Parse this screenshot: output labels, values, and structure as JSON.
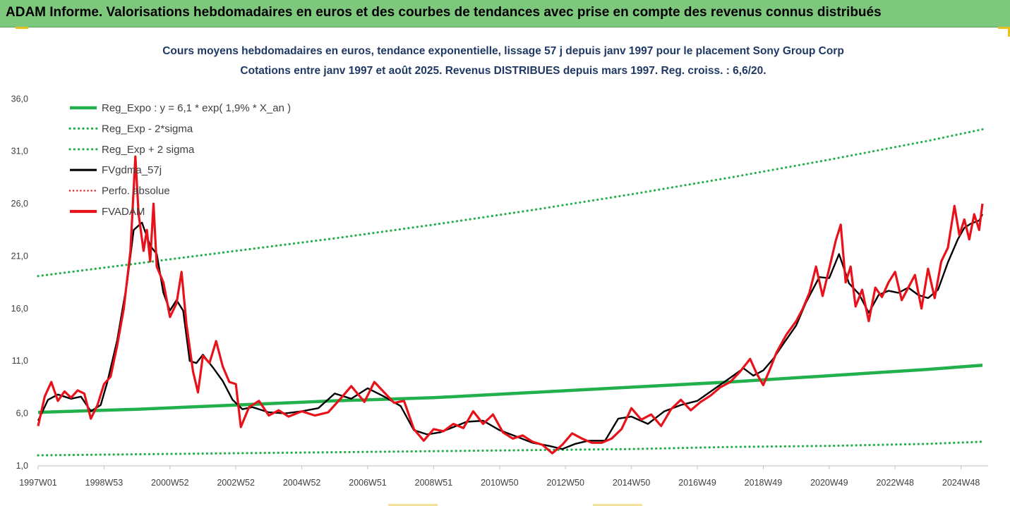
{
  "header": {
    "title": "ADAM Informe. Valorisations hebdomadaires en euros et des courbes de tendances avec prise en compte des revenus connus distribués"
  },
  "colors": {
    "banner": "#7ec87e",
    "trend": "#21b04b",
    "smooth": "#000000",
    "price": "#e8121b",
    "title": "#1f3864"
  },
  "chart_data": {
    "type": "line",
    "title": "Cours moyens hebdomadaires en euros, tendance exponentielle, lissage 57 j depuis janv 1997 pour le placement Sony Group Corp",
    "subtitle": "Cotations entre janv 1997 et août 2025. Revenus DISTRIBUES depuis mars 1997. Reg. croiss. : 6,6/20.",
    "xlabel": "",
    "ylabel": "",
    "ylim": [
      1.0,
      37.5
    ],
    "xlim": [
      1997.0,
      2025.65
    ],
    "y_ticks": [
      "1,0",
      "6,0",
      "11,0",
      "16,0",
      "21,0",
      "26,0",
      "31,0",
      "36,0"
    ],
    "y_tick_values": [
      1,
      6,
      11,
      16,
      21,
      26,
      31,
      36
    ],
    "x_ticks": [
      "1997W01",
      "1998W53",
      "2000W52",
      "2002W52",
      "2004W52",
      "2006W51",
      "2008W51",
      "2010W50",
      "2012W50",
      "2014W50",
      "2016W49",
      "2018W49",
      "2020W49",
      "2022W48",
      "2024W48"
    ],
    "x_tick_values": [
      1997.0,
      1999.0,
      2001.0,
      2003.0,
      2005.0,
      2007.0,
      2009.0,
      2011.0,
      2013.0,
      2015.0,
      2017.0,
      2019.0,
      2021.0,
      2023.0,
      2025.0
    ],
    "grid": false,
    "legend_position": "top-left",
    "legend": [
      "Reg_Expo : y = 6,1 * exp( 1,9% *  X_an )",
      "Reg_Exp - 2*sigma",
      "Reg_Exp + 2 sigma",
      "FVgdma_57j",
      "Perfo. absolue",
      "FVADAM"
    ],
    "series": [
      {
        "name": "Reg_Expo : y = 6,1 * exp( 1,9% *  X_an )",
        "style": "solid",
        "color": "#21b04b",
        "x": [
          1997.0,
          2000.0,
          2003.0,
          2006.0,
          2009.0,
          2012.0,
          2015.0,
          2018.0,
          2021.0,
          2024.0,
          2025.65
        ],
        "values": [
          6.1,
          6.4,
          6.8,
          7.2,
          7.5,
          8.0,
          8.5,
          9.0,
          9.6,
          10.2,
          10.6
        ]
      },
      {
        "name": "Reg_Exp - 2*sigma",
        "style": "dotted",
        "color": "#21b04b",
        "x": [
          1997.0,
          2000.0,
          2003.0,
          2006.0,
          2009.0,
          2012.0,
          2015.0,
          2018.0,
          2021.0,
          2024.0,
          2025.65
        ],
        "values": [
          2.0,
          2.1,
          2.2,
          2.3,
          2.4,
          2.5,
          2.6,
          2.8,
          2.9,
          3.1,
          3.3
        ]
      },
      {
        "name": "Reg_Exp + 2 sigma",
        "style": "dotted",
        "color": "#21b04b",
        "x": [
          1997.0,
          2000.0,
          2003.0,
          2006.0,
          2009.0,
          2012.0,
          2015.0,
          2018.0,
          2021.0,
          2024.0,
          2025.65
        ],
        "values": [
          19.1,
          20.3,
          21.5,
          22.7,
          24.0,
          25.4,
          26.9,
          28.5,
          30.2,
          32.0,
          33.1
        ]
      },
      {
        "name": "FVgdma_57j",
        "style": "solid",
        "color": "#000000",
        "x": [
          1997.0,
          1997.3,
          1997.6,
          1998.0,
          1998.3,
          1998.6,
          1998.9,
          1999.1,
          1999.4,
          1999.7,
          1999.9,
          2000.15,
          2000.4,
          2000.6,
          2000.8,
          2001.0,
          2001.2,
          2001.4,
          2001.6,
          2001.8,
          2002.0,
          2002.3,
          2002.6,
          2002.9,
          2003.2,
          2003.5,
          2004.0,
          2004.5,
          2005.0,
          2005.5,
          2006.0,
          2006.5,
          2007.0,
          2007.5,
          2008.0,
          2008.4,
          2008.8,
          2009.2,
          2009.6,
          2010.0,
          2010.5,
          2011.0,
          2011.5,
          2012.0,
          2012.5,
          2012.9,
          2013.3,
          2013.7,
          2014.2,
          2014.6,
          2015.0,
          2015.5,
          2016.0,
          2016.5,
          2017.0,
          2017.5,
          2018.0,
          2018.4,
          2018.7,
          2019.0,
          2019.3,
          2019.6,
          2020.0,
          2020.3,
          2020.7,
          2021.0,
          2021.3,
          2021.6,
          2021.9,
          2022.2,
          2022.5,
          2022.8,
          2023.1,
          2023.4,
          2023.7,
          2024.0,
          2024.3,
          2024.6,
          2024.9,
          2025.1,
          2025.3,
          2025.55,
          2025.65
        ],
        "values": [
          5.3,
          7.3,
          7.8,
          7.4,
          7.6,
          6.2,
          6.8,
          9.0,
          13.0,
          18.5,
          23.5,
          24.2,
          22.0,
          21.2,
          17.5,
          15.8,
          16.8,
          15.8,
          11.0,
          10.8,
          11.6,
          10.4,
          9.1,
          7.3,
          6.4,
          6.6,
          6.1,
          6.0,
          6.2,
          6.5,
          7.9,
          7.4,
          8.4,
          7.6,
          6.7,
          4.4,
          4.0,
          4.2,
          4.7,
          5.2,
          5.3,
          4.4,
          3.8,
          3.2,
          2.9,
          2.6,
          3.1,
          3.4,
          3.4,
          5.5,
          5.7,
          5.0,
          6.2,
          6.8,
          7.2,
          8.3,
          9.4,
          10.3,
          9.6,
          10.1,
          11.2,
          12.6,
          14.4,
          16.6,
          19.0,
          18.9,
          21.2,
          18.4,
          17.4,
          15.6,
          17.3,
          17.7,
          17.5,
          18.0,
          17.3,
          17.0,
          17.8,
          20.4,
          22.6,
          23.7,
          24.1,
          24.4,
          25.0
        ]
      },
      {
        "name": "FVADAM",
        "style": "solid",
        "color": "#e8121b",
        "x": [
          1997.0,
          1997.2,
          1997.4,
          1997.6,
          1997.8,
          1998.0,
          1998.2,
          1998.4,
          1998.6,
          1998.8,
          1999.0,
          1999.2,
          1999.4,
          1999.6,
          1999.8,
          1999.95,
          2000.05,
          2000.2,
          2000.3,
          2000.4,
          2000.5,
          2000.6,
          2000.8,
          2001.0,
          2001.2,
          2001.35,
          2001.5,
          2001.7,
          2001.85,
          2002.0,
          2002.2,
          2002.4,
          2002.6,
          2002.8,
          2003.0,
          2003.15,
          2003.4,
          2003.7,
          2004.0,
          2004.3,
          2004.6,
          2005.0,
          2005.4,
          2005.8,
          2006.2,
          2006.5,
          2006.9,
          2007.2,
          2007.5,
          2007.8,
          2008.1,
          2008.4,
          2008.7,
          2009.0,
          2009.3,
          2009.6,
          2009.9,
          2010.2,
          2010.5,
          2010.8,
          2011.1,
          2011.4,
          2011.7,
          2012.0,
          2012.3,
          2012.6,
          2012.9,
          2013.2,
          2013.5,
          2013.8,
          2014.1,
          2014.4,
          2014.7,
          2015.0,
          2015.3,
          2015.6,
          2015.9,
          2016.2,
          2016.5,
          2016.8,
          2017.1,
          2017.4,
          2017.7,
          2018.0,
          2018.3,
          2018.6,
          2018.8,
          2019.0,
          2019.2,
          2019.4,
          2019.7,
          2020.0,
          2020.2,
          2020.4,
          2020.6,
          2020.8,
          2021.0,
          2021.2,
          2021.35,
          2021.5,
          2021.65,
          2021.8,
          2022.0,
          2022.2,
          2022.4,
          2022.6,
          2022.8,
          2023.0,
          2023.2,
          2023.4,
          2023.6,
          2023.8,
          2024.0,
          2024.2,
          2024.4,
          2024.6,
          2024.8,
          2024.95,
          2025.1,
          2025.25,
          2025.4,
          2025.55,
          2025.65
        ],
        "values": [
          4.8,
          7.6,
          9.0,
          7.2,
          8.1,
          7.5,
          8.2,
          7.9,
          5.5,
          6.8,
          8.8,
          9.5,
          12.5,
          16.0,
          21.5,
          30.5,
          25.0,
          21.5,
          23.5,
          20.5,
          26.0,
          20.0,
          18.5,
          15.2,
          16.5,
          19.5,
          14.5,
          10.0,
          8.0,
          11.5,
          10.8,
          12.9,
          10.5,
          9.0,
          8.8,
          4.7,
          6.6,
          7.2,
          5.8,
          6.3,
          5.7,
          6.2,
          5.8,
          6.1,
          7.5,
          8.6,
          7.1,
          9.0,
          8.0,
          7.0,
          7.2,
          4.5,
          3.4,
          4.5,
          4.3,
          5.0,
          4.6,
          6.2,
          5.0,
          5.9,
          4.2,
          3.6,
          3.9,
          3.3,
          3.0,
          2.2,
          3.0,
          4.1,
          3.6,
          3.2,
          3.2,
          3.6,
          4.5,
          6.5,
          5.4,
          5.9,
          4.8,
          6.4,
          7.3,
          6.3,
          7.1,
          7.7,
          8.5,
          9.0,
          10.0,
          11.2,
          9.8,
          8.7,
          10.2,
          11.8,
          13.5,
          14.8,
          16.0,
          17.5,
          20.0,
          17.2,
          19.8,
          22.5,
          24.0,
          18.5,
          20.0,
          16.2,
          17.8,
          14.8,
          18.0,
          17.1,
          18.5,
          19.5,
          16.8,
          18.0,
          19.2,
          16.0,
          19.8,
          17.0,
          20.5,
          21.8,
          25.8,
          23.0,
          24.5,
          22.6,
          25.0,
          23.5,
          26.0
        ]
      }
    ]
  }
}
